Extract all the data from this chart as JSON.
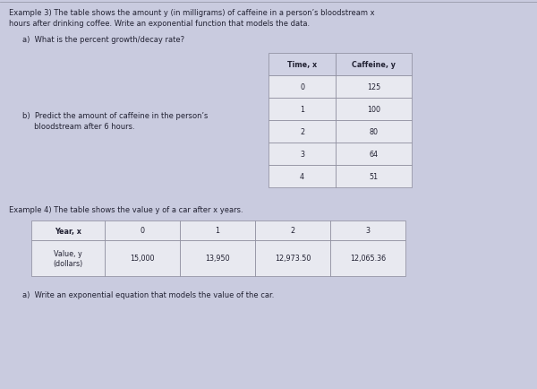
{
  "bg_color": "#c9cbdf",
  "example3_text": "Example 3) The table shows the amount y (in milligrams) of caffeine in a person’s bloodstream x\nhours after drinking coffee. Write an exponential function that models the data.",
  "part_a_text": "a)  What is the percent growth/decay rate?",
  "part_b_text": "b)  Predict the amount of caffeine in the person’s\n     bloodstream after 6 hours.",
  "table1_headers": [
    "Time, x",
    "Caffeine, y"
  ],
  "table1_data": [
    [
      "0",
      "125"
    ],
    [
      "1",
      "100"
    ],
    [
      "2",
      "80"
    ],
    [
      "3",
      "64"
    ],
    [
      "4",
      "51"
    ]
  ],
  "example4_text": "Example 4) The table shows the value y of a car after x years.",
  "table2_headers": [
    "Year, x",
    "0",
    "1",
    "2",
    "3"
  ],
  "table2_row1_label": "Value, y\n(dollars)",
  "table2_data": [
    "15,000",
    "13,950",
    "12,973.50",
    "12,065.36"
  ],
  "part_a2_text": "a)  Write an exponential equation that models the value of the car.",
  "header_bg": "#d0d2e4",
  "table_bg": "#e8e9f0",
  "table_border": "#888899",
  "text_color": "#222233",
  "font_size_body": 6.0,
  "font_size_table": 5.8
}
